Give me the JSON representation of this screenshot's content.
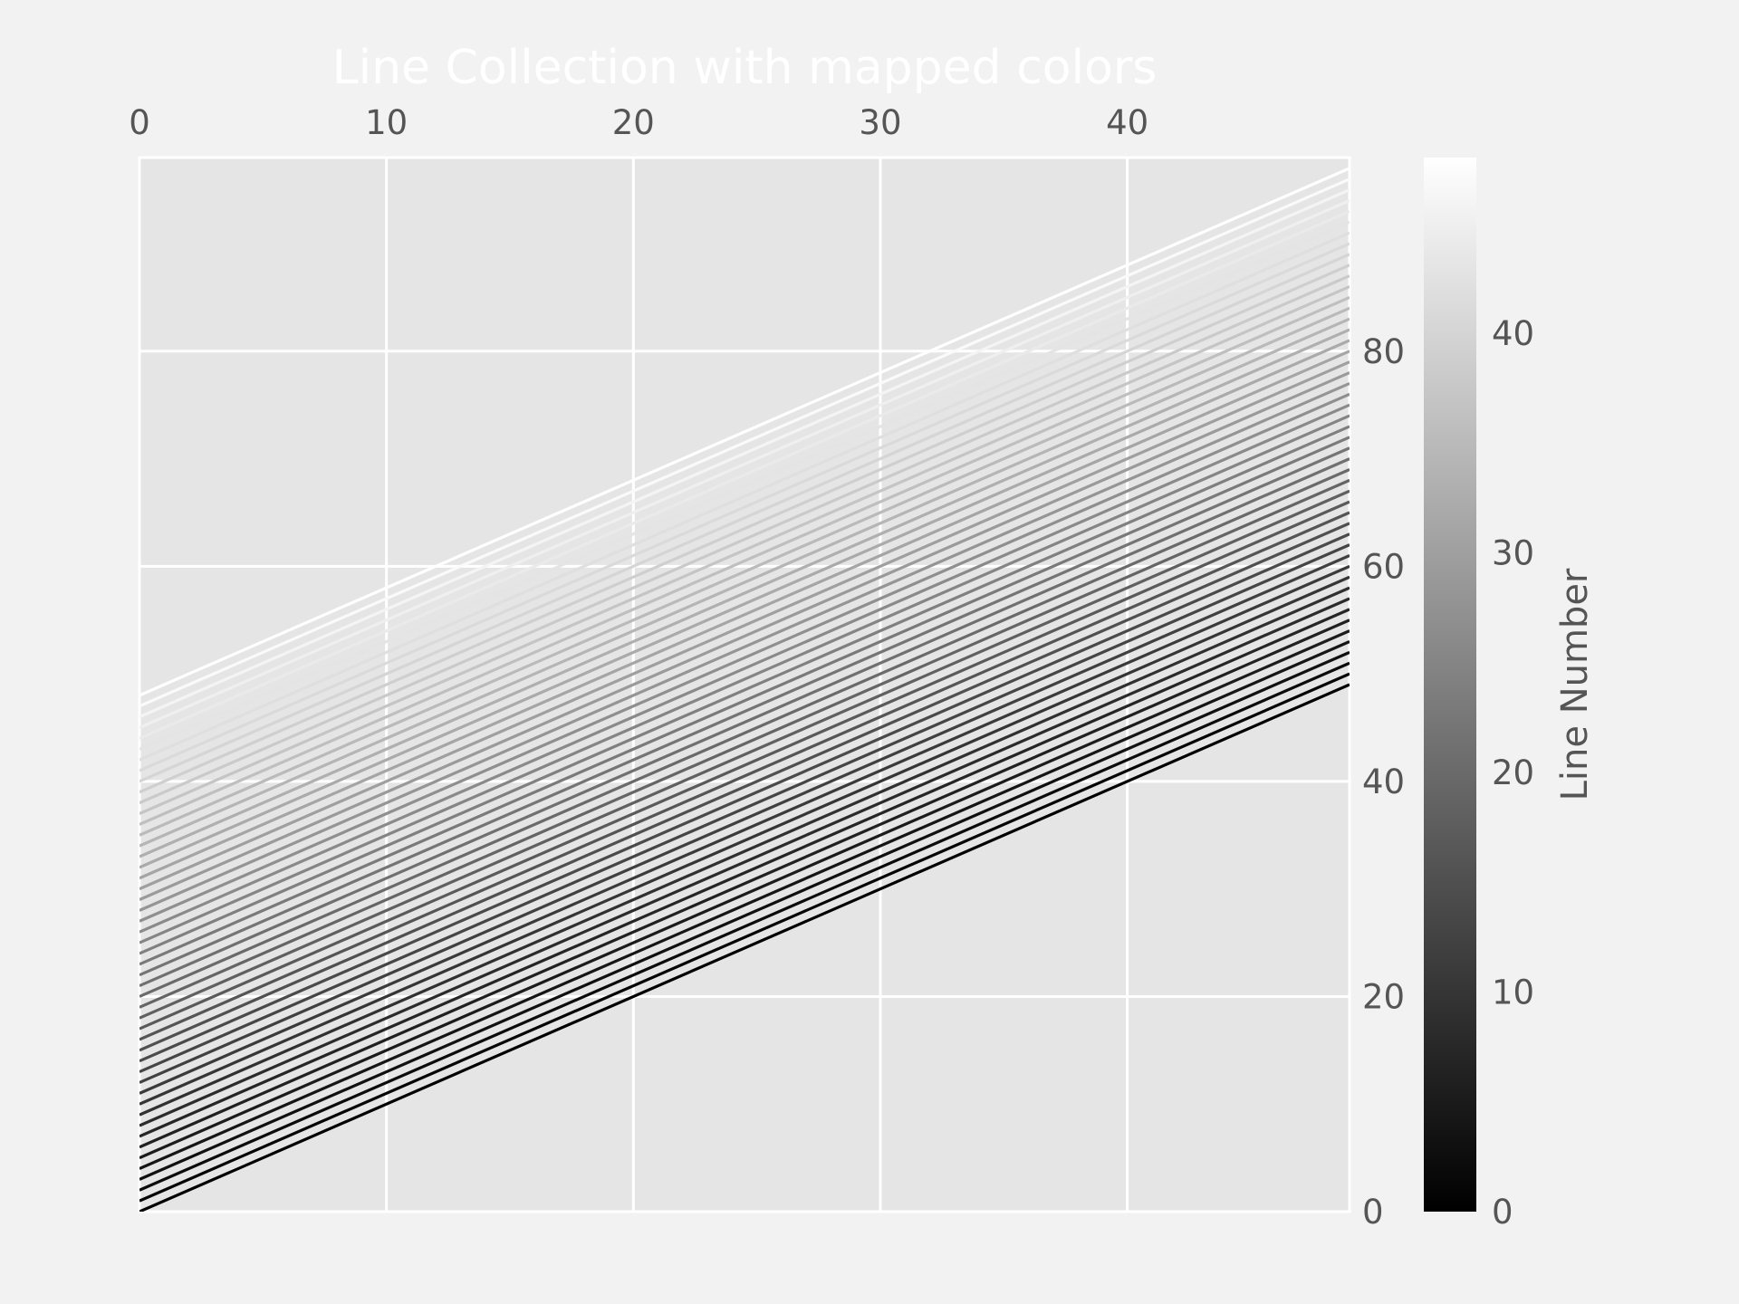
{
  "chart_data": {
    "type": "line",
    "title": "Line Collection with mapped colors",
    "xlim": [
      0,
      49
    ],
    "ylim": [
      0,
      98
    ],
    "x_ticks": [
      0,
      10,
      20,
      30,
      40
    ],
    "y_ticks": [
      0,
      20,
      40,
      60,
      80
    ],
    "x_axis_position": "top",
    "y_axis_position": "right",
    "grid": true,
    "plot_background": "#e5e5e5",
    "figure_background": "#f2f2f2",
    "grid_color": "#ffffff",
    "colormap": "gray",
    "line_count": 49,
    "x": [
      0,
      49
    ],
    "series_rule": "line i: y = x + i, for x in [0, 49], colored by i",
    "series_offsets": [
      0,
      1,
      2,
      3,
      4,
      5,
      6,
      7,
      8,
      9,
      10,
      11,
      12,
      13,
      14,
      15,
      16,
      17,
      18,
      19,
      20,
      21,
      22,
      23,
      24,
      25,
      26,
      27,
      28,
      29,
      30,
      31,
      32,
      33,
      34,
      35,
      36,
      37,
      38,
      39,
      40,
      41,
      42,
      43,
      44,
      45,
      46,
      47,
      48
    ],
    "colorbar": {
      "label": "Line Number",
      "range": [
        0,
        48
      ],
      "ticks": [
        0,
        10,
        20,
        30,
        40
      ],
      "position": "right"
    }
  }
}
